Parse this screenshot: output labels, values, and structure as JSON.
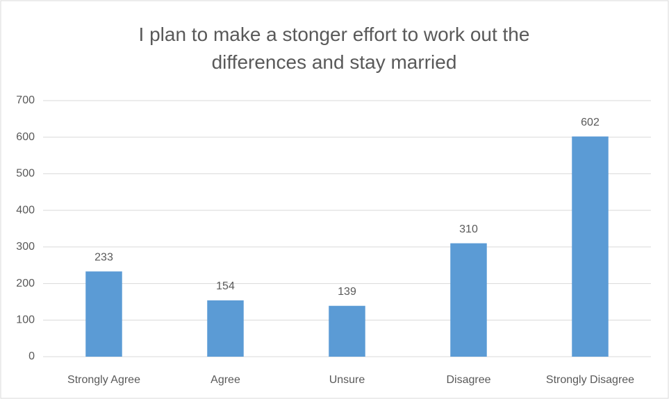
{
  "chart_data": {
    "type": "bar",
    "title": "I plan to make a stonger effort to work out the differences and stay married",
    "categories": [
      "Strongly Agree",
      "Agree",
      "Unsure",
      "Disagree",
      "Strongly Disagree"
    ],
    "values": [
      233,
      154,
      139,
      310,
      602
    ],
    "color": "#5b9bd5",
    "ylim": [
      0,
      700
    ],
    "yticks": [
      0,
      100,
      200,
      300,
      400,
      500,
      600,
      700
    ],
    "grid": true
  }
}
